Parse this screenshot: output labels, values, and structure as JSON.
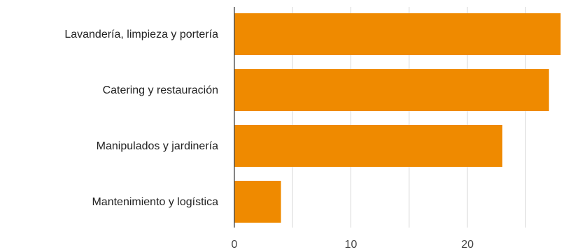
{
  "chart_data": {
    "type": "bar",
    "orientation": "horizontal",
    "title": "",
    "xlabel": "",
    "ylabel": "",
    "categories": [
      "Lavandería, limpieza y portería",
      "Catering y restauración",
      "Manipulados y jardinería",
      "Mantenimiento y logística"
    ],
    "values": [
      28,
      27,
      23,
      4
    ],
    "xlim": [
      0,
      29
    ],
    "xticks": [
      0,
      10,
      20
    ],
    "minor_gridlines": [
      5,
      15,
      25
    ],
    "grid": true,
    "legend": "none",
    "bar_color": "#ef8a00"
  }
}
